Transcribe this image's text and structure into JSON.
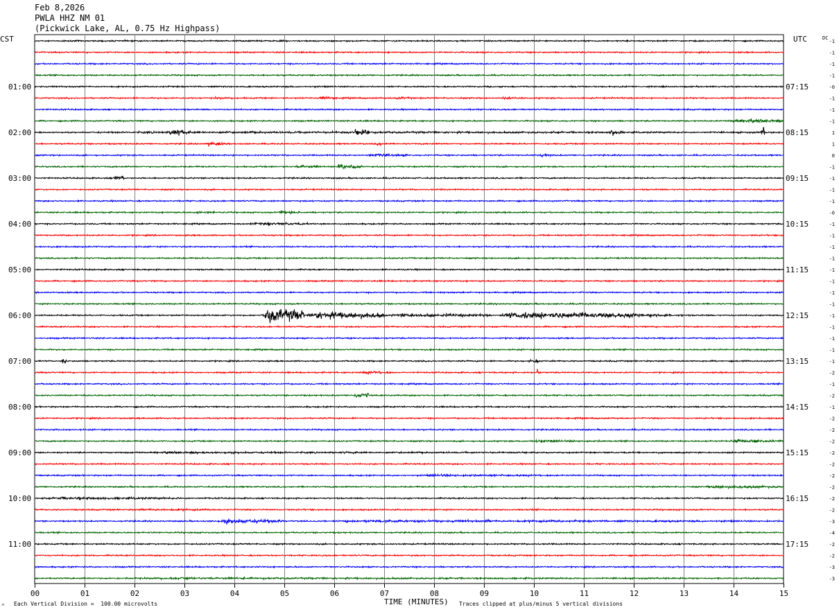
{
  "header": {
    "date": "Feb 8,2026",
    "station": "PWLA HHZ NM 01",
    "location": "(Pickwick Lake, AL, 0.75 Hz Highpass)"
  },
  "left_axis_label": "CST",
  "right_axis_label": "UTC",
  "dc_label": "DC",
  "footer": {
    "scale_note": "Each Vertical Division =  100.00 microvolts",
    "clip_note": "Traces clipped at plus/minus 5 vertical divisions",
    "corner_mark": "^"
  },
  "chart_data": {
    "type": "line",
    "title": "PWLA HHZ NM 01",
    "xlabel": "TIME (MINUTES)",
    "xlim": [
      0,
      15
    ],
    "x_ticks": [
      "00",
      "01",
      "02",
      "03",
      "04",
      "05",
      "06",
      "07",
      "08",
      "09",
      "10",
      "11",
      "12",
      "13",
      "14",
      "15"
    ],
    "traces_per_hour": 4,
    "trace_count": 48,
    "left_hour_labels": [
      "01:00",
      "02:00",
      "03:00",
      "04:00",
      "05:00",
      "06:00",
      "07:00",
      "08:00",
      "09:00",
      "10:00",
      "11:00"
    ],
    "right_hour_labels": [
      "07:15",
      "08:15",
      "09:15",
      "10:15",
      "11:15",
      "12:15",
      "13:15",
      "14:15",
      "15:15",
      "16:15",
      "17:15"
    ],
    "trace_colors": [
      "#000000",
      "#ff0000",
      "#0000ff",
      "#006400"
    ],
    "dc_offsets": [
      "-1",
      "-1",
      "-1",
      "-1",
      "-0",
      "-1",
      "-1",
      "-1",
      "1",
      "1",
      "0",
      "-1",
      "-1",
      "-1",
      "-1",
      "-0",
      "-1",
      "-1",
      "-1",
      "-1",
      "-1",
      "-1",
      "-1",
      "-1",
      "-1",
      "-1",
      "-1",
      "-1",
      "-1",
      "-2",
      "-1",
      "-2",
      "-1",
      "-2",
      "-2",
      "-2",
      "-2",
      "-2",
      "-2",
      "-2",
      "-2",
      "-2",
      "-3",
      "-4",
      "-2",
      "-2",
      "-3",
      "-3"
    ],
    "events": [
      {
        "trace": 4,
        "start_min": 0.0,
        "end_min": 15.0,
        "level": 1.0
      },
      {
        "trace": 5,
        "start_min": 3.5,
        "end_min": 4.0,
        "level": 1.8
      },
      {
        "trace": 5,
        "start_min": 5.7,
        "end_min": 6.0,
        "level": 2.0
      },
      {
        "trace": 5,
        "start_min": 7.2,
        "end_min": 7.6,
        "level": 2.2
      },
      {
        "trace": 5,
        "start_min": 9.3,
        "end_min": 9.8,
        "level": 2.0
      },
      {
        "trace": 7,
        "start_min": 13.8,
        "end_min": 15.0,
        "level": 3.0
      },
      {
        "trace": 8,
        "start_min": 0.0,
        "end_min": 15.0,
        "level": 1.8
      },
      {
        "trace": 8,
        "start_min": 2.7,
        "end_min": 3.0,
        "level": 4.5
      },
      {
        "trace": 8,
        "start_min": 6.4,
        "end_min": 6.7,
        "level": 4.0
      },
      {
        "trace": 8,
        "start_min": 11.5,
        "end_min": 11.8,
        "level": 4.0
      },
      {
        "trace": 8,
        "start_min": 14.55,
        "end_min": 14.62,
        "level": 9.0
      },
      {
        "trace": 9,
        "start_min": 3.4,
        "end_min": 3.9,
        "level": 3.0
      },
      {
        "trace": 9,
        "start_min": 6.8,
        "end_min": 7.2,
        "level": 2.0
      },
      {
        "trace": 10,
        "start_min": 6.5,
        "end_min": 7.5,
        "level": 2.5
      },
      {
        "trace": 10,
        "start_min": 10.1,
        "end_min": 10.4,
        "level": 3.0
      },
      {
        "trace": 11,
        "start_min": 5.2,
        "end_min": 5.7,
        "level": 2.5
      },
      {
        "trace": 11,
        "start_min": 6.0,
        "end_min": 6.6,
        "level": 4.0
      },
      {
        "trace": 12,
        "start_min": 1.6,
        "end_min": 1.8,
        "level": 3.0
      },
      {
        "trace": 15,
        "start_min": 3.2,
        "end_min": 3.6,
        "level": 3.0
      },
      {
        "trace": 15,
        "start_min": 4.8,
        "end_min": 5.4,
        "level": 2.5
      },
      {
        "trace": 16,
        "start_min": 4.2,
        "end_min": 5.5,
        "level": 2.5
      },
      {
        "trace": 24,
        "start_min": 4.55,
        "end_min": 5.4,
        "level": 12.0
      },
      {
        "trace": 24,
        "start_min": 5.4,
        "end_min": 7.0,
        "level": 6.0
      },
      {
        "trace": 24,
        "start_min": 7.0,
        "end_min": 9.2,
        "level": 3.0
      },
      {
        "trace": 24,
        "start_min": 9.2,
        "end_min": 12.2,
        "level": 5.5
      },
      {
        "trace": 24,
        "start_min": 12.2,
        "end_min": 13.0,
        "level": 2.5
      },
      {
        "trace": 28,
        "start_min": 0.55,
        "end_min": 0.65,
        "level": 5.0
      },
      {
        "trace": 28,
        "start_min": 9.9,
        "end_min": 10.1,
        "level": 3.0
      },
      {
        "trace": 29,
        "start_min": 6.5,
        "end_min": 7.2,
        "level": 2.5
      },
      {
        "trace": 29,
        "start_min": 10.05,
        "end_min": 10.1,
        "level": 6.0
      },
      {
        "trace": 31,
        "start_min": 6.4,
        "end_min": 6.7,
        "level": 3.0
      },
      {
        "trace": 35,
        "start_min": 9.7,
        "end_min": 11.5,
        "level": 2.0
      },
      {
        "trace": 35,
        "start_min": 13.8,
        "end_min": 15.0,
        "level": 2.5
      },
      {
        "trace": 36,
        "start_min": 0.0,
        "end_min": 15.0,
        "level": 1.5
      },
      {
        "trace": 38,
        "start_min": 7.5,
        "end_min": 10.5,
        "level": 2.0
      },
      {
        "trace": 39,
        "start_min": 13.3,
        "end_min": 15.0,
        "level": 2.5
      },
      {
        "trace": 40,
        "start_min": 0.0,
        "end_min": 3.5,
        "level": 2.0
      },
      {
        "trace": 41,
        "start_min": 2.0,
        "end_min": 3.5,
        "level": 2.0
      },
      {
        "trace": 42,
        "start_min": 3.6,
        "end_min": 5.0,
        "level": 3.5
      },
      {
        "trace": 42,
        "start_min": 5.0,
        "end_min": 15.0,
        "level": 2.0
      },
      {
        "trace": 47,
        "start_min": 0.0,
        "end_min": 15.0,
        "level": 1.5
      }
    ]
  }
}
